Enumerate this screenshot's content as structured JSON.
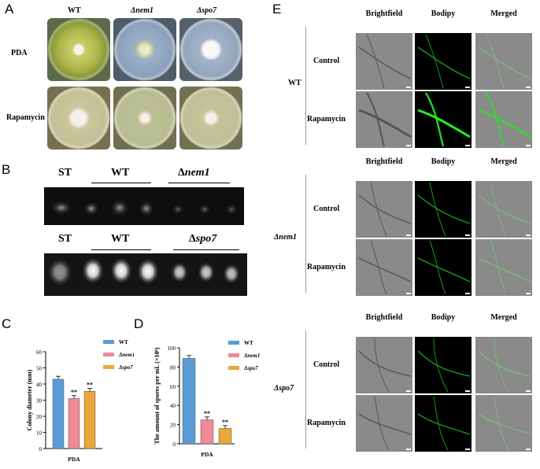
{
  "panel_a": {
    "letter": "A",
    "columns": [
      "WT",
      "Δnem1",
      "Δspo7"
    ],
    "rows": [
      "PDA",
      "Rapamycin"
    ],
    "colors": {
      "pda_wt": "#b9c160",
      "pda_mut": "#9fb0c8",
      "rapa": "#c8c49a",
      "colony": "#f2f0ea"
    }
  },
  "panel_b": {
    "letter": "B",
    "top": {
      "st": "ST",
      "wt": "WT",
      "mut_prefix": "Δ",
      "mut": "nem1"
    },
    "bottom": {
      "st": "ST",
      "wt": "WT",
      "mut_prefix": "Δ",
      "mut": "spo7"
    }
  },
  "panel_c": {
    "letter": "C",
    "chart_data": {
      "type": "bar",
      "categories": [
        "PDA"
      ],
      "series": [
        {
          "name": "WT",
          "values": [
            43
          ],
          "color": "#5b9bd5"
        },
        {
          "name": "Δnem1",
          "values": [
            31
          ],
          "color": "#f08a96"
        },
        {
          "name": "Δspo7",
          "values": [
            35.5
          ],
          "color": "#e8a83a"
        }
      ],
      "significance": [
        "",
        "**",
        "**"
      ],
      "ylabel": "Colony diameter (mm)",
      "xlabel": "PDA",
      "ylim": [
        0,
        60
      ],
      "yticks": [
        "0",
        "10",
        "20",
        "30",
        "40",
        "50",
        "60"
      ],
      "legend": "top-right"
    }
  },
  "panel_d": {
    "letter": "D",
    "chart_data": {
      "type": "bar",
      "categories": [
        "PDA"
      ],
      "series": [
        {
          "name": "WT",
          "values": [
            89
          ],
          "color": "#5b9bd5"
        },
        {
          "name": "Δnem1",
          "values": [
            25
          ],
          "color": "#f08a96"
        },
        {
          "name": "Δspo7",
          "values": [
            16
          ],
          "color": "#e8a83a"
        }
      ],
      "significance": [
        "",
        "**",
        "**"
      ],
      "ylabel": "The amount of spores per mL (×10⁶)",
      "xlabel": "PDA",
      "ylim": [
        0,
        100
      ],
      "yticks": [
        "0",
        "20",
        "40",
        "60",
        "80",
        "100"
      ],
      "legend": "top-right"
    }
  },
  "panel_e": {
    "letter": "E",
    "headers": [
      "Brightfield",
      "Bodipy",
      "Merged"
    ],
    "groups": [
      {
        "strain": "WT",
        "conditions": [
          "Control",
          "Rapamycin"
        ]
      },
      {
        "strain": "Δnem1",
        "conditions": [
          "Control",
          "Rapamycin"
        ]
      },
      {
        "strain": "Δspo7",
        "conditions": [
          "Control",
          "Rapamycin"
        ]
      }
    ]
  }
}
